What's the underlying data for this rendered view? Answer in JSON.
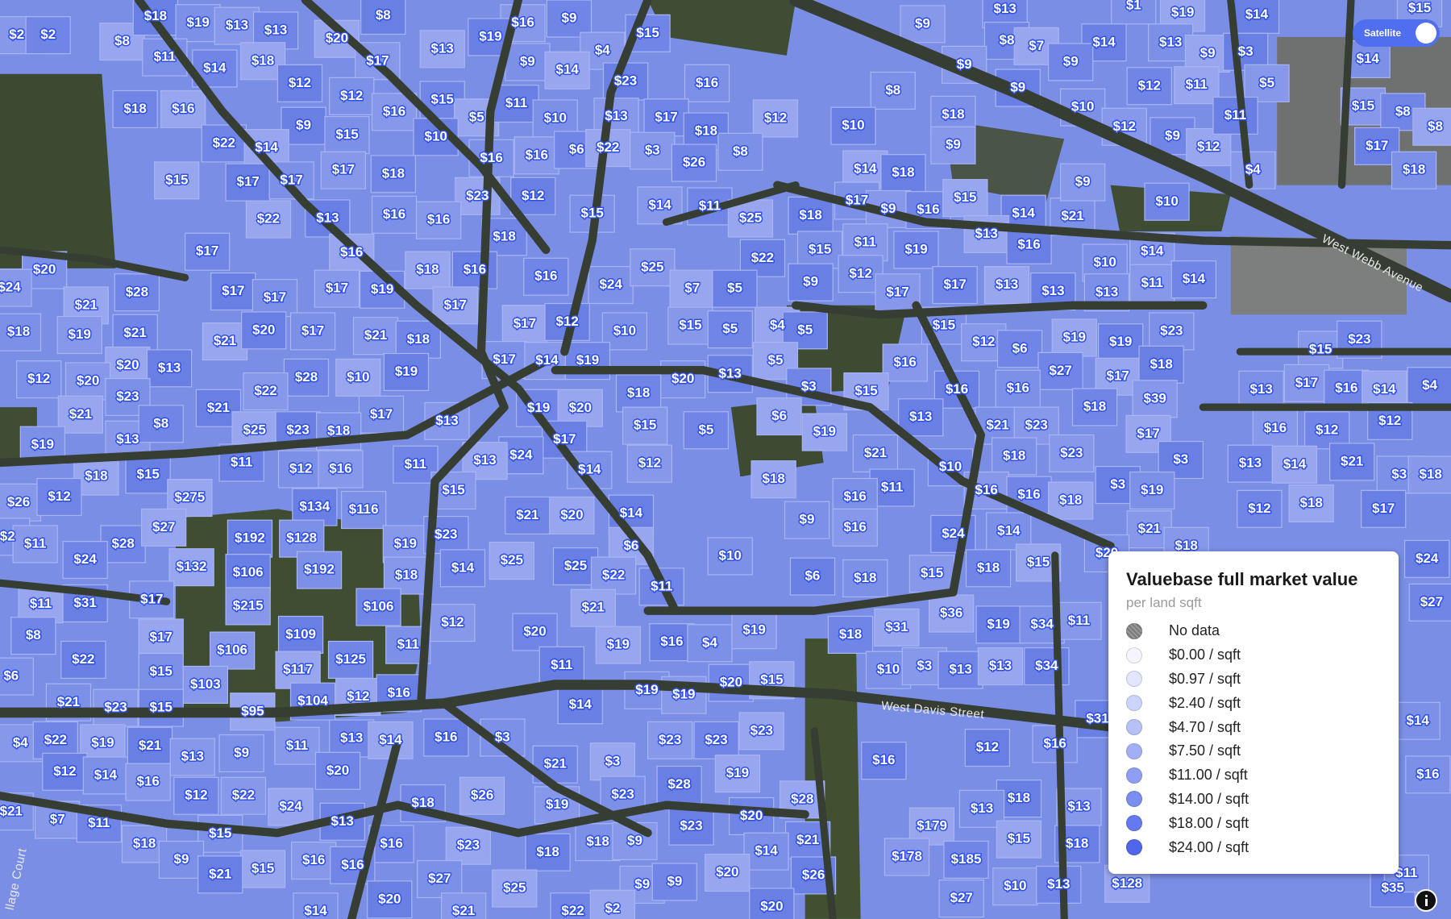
{
  "toggle": {
    "label": "Satellite"
  },
  "streets": [
    "West Webb Avenue",
    "West Davis Street",
    "llage Court"
  ],
  "legend": {
    "title": "Valuebase full market value",
    "subtitle": "per land sqft",
    "items": [
      "No data",
      "$0.00 / sqft",
      "$0.97 / sqft",
      "$2.40 / sqft",
      "$4.70 / sqft",
      "$7.50 / sqft",
      "$11.00 / sqft",
      "$14.00 / sqft",
      "$18.00 / sqft",
      "$24.00 / sqft"
    ]
  },
  "parcels": [
    "$2",
    "$2",
    "$8",
    "$18",
    "$19",
    "$13",
    "$13",
    "$20",
    "$8",
    "$11",
    "$17",
    "$14",
    "$18",
    "$12",
    "$12",
    "$16",
    "$9",
    "$13",
    "$19",
    "$9",
    "$4",
    "$15",
    "$14",
    "$23",
    "$16",
    "$9",
    "$13",
    "$19",
    "$14",
    "$1",
    "$15",
    "$8",
    "$7",
    "$14",
    "$13",
    "$9",
    "$9",
    "$9",
    "$3",
    "$14",
    "$5",
    "$12",
    "$11",
    "$9",
    "$10",
    "$12",
    "$9",
    "$12",
    "$11",
    "$8",
    "$15",
    "$8",
    "$8",
    "$17",
    "$18",
    "$4",
    "$18",
    "$16",
    "$9",
    "$15",
    "$16",
    "$15",
    "$5",
    "$11",
    "$10",
    "$13",
    "$17",
    "$12",
    "$10",
    "$18",
    "$9",
    "$22",
    "$14",
    "$10",
    "$16",
    "$16",
    "$6",
    "$22",
    "$18",
    "$8",
    "$3",
    "$26",
    "$15",
    "$17",
    "$17",
    "$17",
    "$18",
    "$23",
    "$12",
    "$15",
    "$14",
    "$11",
    "$14",
    "$18",
    "$17",
    "$9",
    "$16",
    "$15",
    "$14",
    "$21",
    "$9",
    "$10",
    "$22",
    "$13",
    "$16",
    "$16",
    "$18",
    "$25",
    "$18",
    "$15",
    "$11",
    "$19",
    "$13",
    "$16",
    "$10",
    "$14",
    "$17",
    "$16",
    "$22",
    "$24",
    "$25",
    "$16",
    "$18",
    "$16",
    "$20",
    "$24",
    "$28",
    "$21",
    "$17",
    "$17",
    "$17",
    "$19",
    "$17",
    "$9",
    "$12",
    "$17",
    "$17",
    "$13",
    "$13",
    "$13",
    "$11",
    "$14",
    "$7",
    "$5",
    "$18",
    "$19",
    "$21",
    "$21",
    "$20",
    "$17",
    "$21",
    "$18",
    "$17",
    "$12",
    "$10",
    "$15",
    "$5",
    "$4",
    "$5",
    "$15",
    "$12",
    "$6",
    "$19",
    "$19",
    "$23",
    "$15",
    "$23",
    "$20",
    "$13",
    "$12",
    "$20",
    "$28",
    "$10",
    "$19",
    "$17",
    "$14",
    "$19",
    "$5",
    "$13",
    "$20",
    "$16",
    "$27",
    "$17",
    "$18",
    "$13",
    "$17",
    "$16",
    "$14",
    "$4",
    "$23",
    "$22",
    "$3",
    "$15",
    "$16",
    "$16",
    "$39",
    "$18",
    "$21",
    "$21",
    "$17",
    "$13",
    "$19",
    "$20",
    "$13",
    "$21",
    "$23",
    "$18",
    "$6",
    "$12",
    "$19",
    "$13",
    "$8",
    "$25",
    "$23",
    "$18",
    "$15",
    "$5",
    "$19",
    "$17",
    "$21",
    "$16",
    "$12",
    "$17",
    "$3",
    "$18",
    "$23",
    "$13",
    "$14",
    "$21",
    "$3",
    "$18",
    "$24",
    "$13",
    "$11",
    "$12",
    "$16",
    "$11",
    "$18",
    "$15",
    "$14",
    "$12",
    "$10",
    "$18",
    "$11",
    "$16",
    "$16",
    "$16",
    "$18",
    "$3",
    "$19",
    "$26",
    "$12",
    "$275",
    "$134",
    "$116",
    "$15",
    "$21",
    "$20",
    "$14",
    "$9",
    "$16",
    "$12",
    "$18",
    "$17",
    "$2",
    "$11",
    "$28",
    "$27",
    "$192",
    "$128",
    "$19",
    "$23",
    "$6",
    "$24",
    "$14",
    "$21",
    "$24",
    "$132",
    "$106",
    "$192",
    "$18",
    "$14",
    "$25",
    "$25",
    "$10",
    "$15",
    "$18",
    "$15",
    "$6",
    "$18",
    "$22",
    "$11",
    "$11",
    "$31",
    "$17",
    "$215",
    "$106",
    "$21",
    "$24",
    "$20",
    "$18",
    "$27",
    "$36",
    "$19",
    "$34",
    "$11",
    "$8",
    "$17",
    "$109",
    "$11",
    "$12",
    "$20",
    "$19",
    "$16",
    "$4",
    "$19",
    "$18",
    "$31",
    "$22",
    "$15",
    "$106",
    "$125",
    "$117",
    "$11",
    "$10",
    "$3",
    "$13",
    "$13",
    "$34",
    "$6",
    "$103",
    "$104",
    "$12",
    "$16",
    "$19",
    "$19",
    "$20",
    "$15",
    "$14",
    "$21",
    "$23",
    "$15",
    "$95",
    "$31",
    "$14",
    "$4",
    "$22",
    "$19",
    "$21",
    "$9",
    "$11",
    "$13",
    "$14",
    "$16",
    "$3",
    "$23",
    "$23",
    "$23",
    "$12",
    "$16",
    "$13",
    "$20",
    "$19",
    "$12",
    "$14",
    "$16",
    "$21",
    "$3",
    "$16",
    "$16",
    "$22",
    "$12",
    "$26",
    "$28",
    "$23",
    "$19",
    "$18",
    "$28",
    "$18",
    "$21",
    "$7",
    "$11",
    "$24",
    "$13",
    "$13",
    "$13",
    "$20",
    "$179",
    "$23",
    "$15",
    "$18",
    "$16",
    "$23",
    "$18",
    "$18",
    "$9",
    "$21",
    "$15",
    "$18",
    "$9",
    "$16",
    "$16",
    "$15",
    "$21",
    "$14",
    "$178",
    "$185",
    "$20",
    "$26",
    "$27",
    "$9",
    "$9",
    "$25",
    "$20",
    "$14",
    "$21",
    "$22",
    "$2",
    "$20",
    "$27",
    "$10",
    "$13",
    "$128",
    "$35",
    "$11"
  ]
}
